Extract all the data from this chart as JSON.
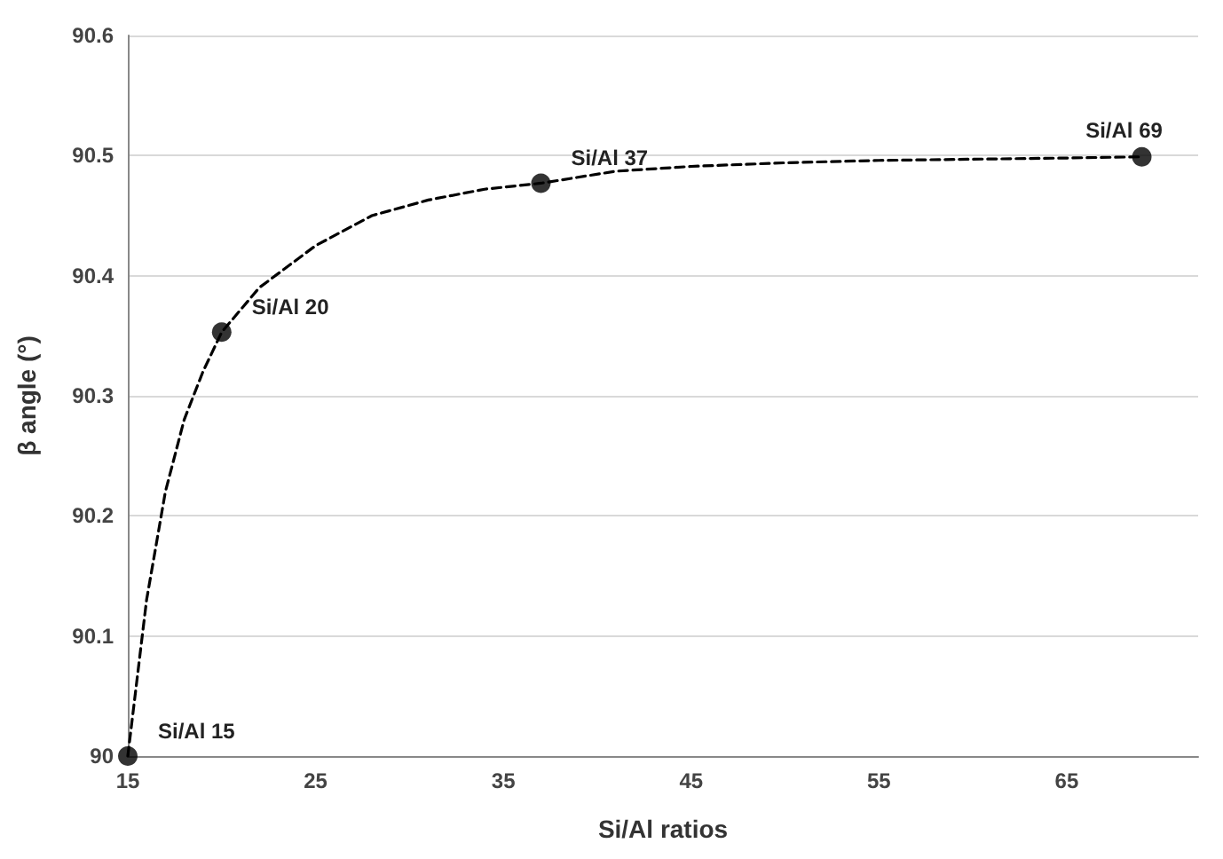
{
  "chart_data": {
    "type": "scatter",
    "xlabel": "Si/Al ratios",
    "ylabel": "β angle (°)",
    "xlim": [
      15,
      72
    ],
    "xticks": [
      15,
      25,
      35,
      45,
      55,
      65
    ],
    "ylim": [
      90,
      90.6
    ],
    "yticks": [
      90,
      90.1,
      90.2,
      90.3,
      90.4,
      90.5,
      90.6
    ],
    "grid": "y",
    "series": [
      {
        "type": "line",
        "color": "#000000",
        "line_style": "dashed",
        "marker": "none",
        "x": [
          15,
          16,
          17,
          18,
          19,
          20,
          22,
          25,
          28,
          31,
          34,
          37,
          41,
          45,
          50,
          55,
          60,
          65,
          69
        ],
        "values": [
          90.0,
          90.13,
          90.22,
          90.28,
          90.32,
          90.353,
          90.39,
          90.425,
          90.45,
          90.463,
          90.472,
          90.477,
          90.487,
          90.491,
          90.494,
          90.496,
          90.497,
          90.498,
          90.499
        ]
      },
      {
        "color": "#000000",
        "marker": "circle",
        "x": [
          15,
          20,
          37,
          69
        ],
        "values": [
          90.0,
          90.353,
          90.477,
          90.499
        ]
      }
    ],
    "annotations": [
      {
        "text": "Si/Al 15",
        "x": 15,
        "y": 90.0
      },
      {
        "text": "Si/Al 20",
        "x": 20,
        "y": 90.353
      },
      {
        "text": "Si/Al 37",
        "x": 37,
        "y": 90.477
      },
      {
        "text": "Si/Al 69",
        "x": 69,
        "y": 90.499
      }
    ]
  }
}
